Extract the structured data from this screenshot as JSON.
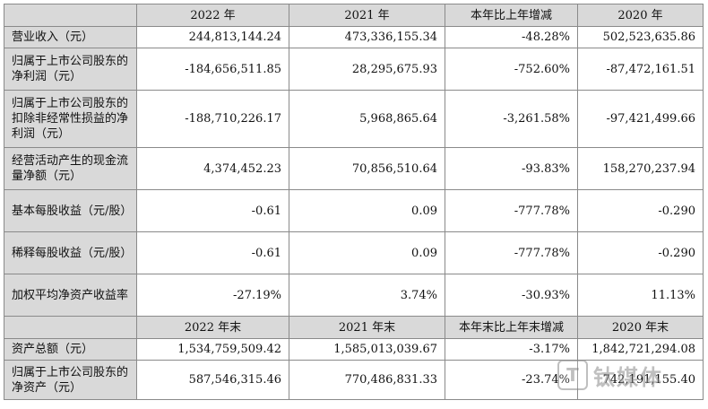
{
  "header1": [
    "2022 年",
    "2021 年",
    "本年比上年增减",
    "2020 年"
  ],
  "header2": [
    "2022 年末",
    "2021 年末",
    "本年末比上年末增减",
    "2020 年末"
  ],
  "rows": [
    {
      "label": "营业收入（元）",
      "v2022": "244,813,144.24",
      "v2021": "473,336,155.34",
      "change": "-48.28%",
      "v2020": "502,523,635.86"
    },
    {
      "label": "归属于上市公司股东的净利润（元）",
      "v2022": "-184,656,511.85",
      "v2021": "28,295,675.93",
      "change": "-752.60%",
      "v2020": "-87,472,161.51"
    },
    {
      "label": "归属于上市公司股东的扣除非经常性损益的净利润（元）",
      "v2022": "-188,710,226.17",
      "v2021": "5,968,865.64",
      "change": "-3,261.58%",
      "v2020": "-97,421,499.66"
    },
    {
      "label": "经营活动产生的现金流量净额（元）",
      "v2022": "4,374,452.23",
      "v2021": "70,856,510.64",
      "change": "-93.83%",
      "v2020": "158,270,237.94"
    },
    {
      "label": "基本每股收益（元/股）",
      "v2022": "-0.61",
      "v2021": "0.09",
      "change": "-777.78%",
      "v2020": "-0.290"
    },
    {
      "label": "稀释每股收益（元/股）",
      "v2022": "-0.61",
      "v2021": "0.09",
      "change": "-777.78%",
      "v2020": "-0.290"
    },
    {
      "label": "加权平均净资产收益率",
      "v2022": "-27.19%",
      "v2021": "3.74%",
      "change": "-30.93%",
      "v2020": "11.13%"
    }
  ],
  "rows2": [
    {
      "label": "资产总额（元）",
      "v2022": "1,534,759,509.42",
      "v2021": "1,585,013,039.67",
      "change": "-3.17%",
      "v2020": "1,842,721,294.08"
    },
    {
      "label": "归属于上市公司股东的净资产（元）",
      "v2022": "587,546,315.46",
      "v2021": "770,486,831.33",
      "change": "-23.74%",
      "v2020": "742,191,155.40"
    }
  ],
  "watermark": {
    "logo": "T",
    "text": "钛媒体"
  }
}
